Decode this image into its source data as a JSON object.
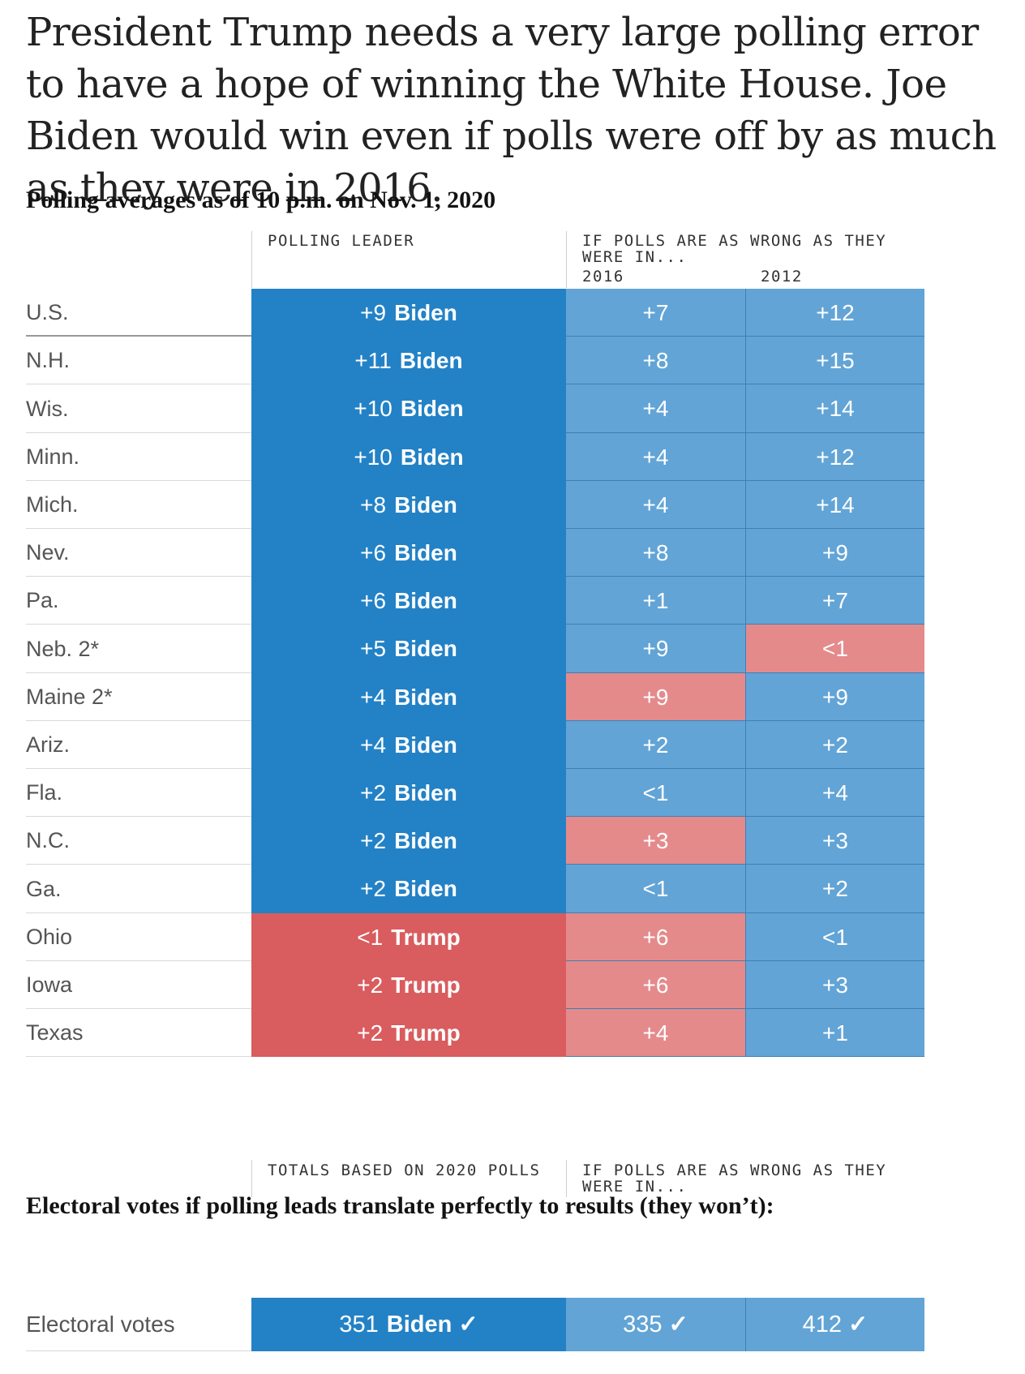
{
  "headline": "President Trump needs a very large polling error to have a hope of winning the White House. Joe Biden would win even if polls were off by as much as they were in 2016.",
  "subtitle": "Polling averages as of 10 p.m. on Nov. 1, 2020",
  "colors": {
    "biden_dark": "#2382c6",
    "biden_light": "#62a4d6",
    "trump_dark": "#d95c5e",
    "trump_light": "#e58a8b"
  },
  "chart_data": {
    "type": "table",
    "columns": {
      "leader": "POLLING LEADER",
      "scenario_group": "IF POLLS ARE AS WRONG AS THEY WERE IN...",
      "y2016": "2016",
      "y2012": "2012"
    },
    "rows": [
      {
        "state": "U.S.",
        "margin": "+9",
        "leader": "Biden",
        "m2016": "+7",
        "w2016": "Biden",
        "m2012": "+12",
        "w2012": "Biden"
      },
      {
        "state": "N.H.",
        "margin": "+11",
        "leader": "Biden",
        "m2016": "+8",
        "w2016": "Biden",
        "m2012": "+15",
        "w2012": "Biden"
      },
      {
        "state": "Wis.",
        "margin": "+10",
        "leader": "Biden",
        "m2016": "+4",
        "w2016": "Biden",
        "m2012": "+14",
        "w2012": "Biden"
      },
      {
        "state": "Minn.",
        "margin": "+10",
        "leader": "Biden",
        "m2016": "+4",
        "w2016": "Biden",
        "m2012": "+12",
        "w2012": "Biden"
      },
      {
        "state": "Mich.",
        "margin": "+8",
        "leader": "Biden",
        "m2016": "+4",
        "w2016": "Biden",
        "m2012": "+14",
        "w2012": "Biden"
      },
      {
        "state": "Nev.",
        "margin": "+6",
        "leader": "Biden",
        "m2016": "+8",
        "w2016": "Biden",
        "m2012": "+9",
        "w2012": "Biden"
      },
      {
        "state": "Pa.",
        "margin": "+6",
        "leader": "Biden",
        "m2016": "+1",
        "w2016": "Biden",
        "m2012": "+7",
        "w2012": "Biden"
      },
      {
        "state": "Neb. 2*",
        "margin": "+5",
        "leader": "Biden",
        "m2016": "+9",
        "w2016": "Biden",
        "m2012": "<1",
        "w2012": "Trump"
      },
      {
        "state": "Maine 2*",
        "margin": "+4",
        "leader": "Biden",
        "m2016": "+9",
        "w2016": "Trump",
        "m2012": "+9",
        "w2012": "Biden"
      },
      {
        "state": "Ariz.",
        "margin": "+4",
        "leader": "Biden",
        "m2016": "+2",
        "w2016": "Biden",
        "m2012": "+2",
        "w2012": "Biden"
      },
      {
        "state": "Fla.",
        "margin": "+2",
        "leader": "Biden",
        "m2016": "<1",
        "w2016": "Biden",
        "m2012": "+4",
        "w2012": "Biden"
      },
      {
        "state": "N.C.",
        "margin": "+2",
        "leader": "Biden",
        "m2016": "+3",
        "w2016": "Trump",
        "m2012": "+3",
        "w2012": "Biden"
      },
      {
        "state": "Ga.",
        "margin": "+2",
        "leader": "Biden",
        "m2016": "<1",
        "w2016": "Biden",
        "m2012": "+2",
        "w2012": "Biden"
      },
      {
        "state": "Ohio",
        "margin": "<1",
        "leader": "Trump",
        "m2016": "+6",
        "w2016": "Trump",
        "m2012": "<1",
        "w2012": "Biden"
      },
      {
        "state": "Iowa",
        "margin": "+2",
        "leader": "Trump",
        "m2016": "+6",
        "w2016": "Trump",
        "m2012": "+3",
        "w2012": "Biden"
      },
      {
        "state": "Texas",
        "margin": "+2",
        "leader": "Trump",
        "m2016": "+4",
        "w2016": "Trump",
        "m2012": "+1",
        "w2012": "Biden"
      }
    ]
  },
  "electoral": {
    "subtitle": "Electoral votes if polling leads translate perfectly to results (they won’t):",
    "col_totals": "TOTALS BASED ON 2020 POLLS",
    "col_scenario": "IF POLLS ARE AS WRONG AS THEY WERE IN...",
    "row_label": "Electoral votes",
    "total_2020": "351",
    "total_2020_leader": "Biden",
    "total_2016": "335",
    "total_2012": "412",
    "check": "✓"
  }
}
